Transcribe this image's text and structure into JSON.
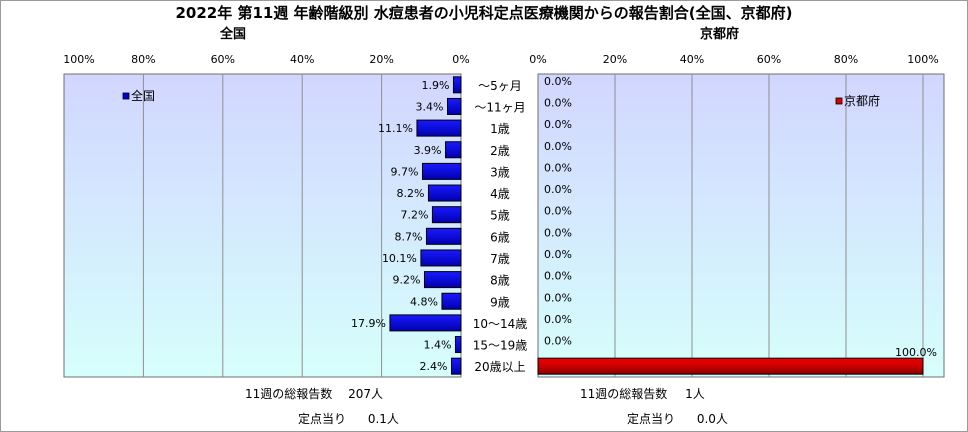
{
  "title": "2022年 第11週 年齢階級別 水痘患者の小児科定点医療機関からの報告割合(全国、京都府)",
  "colors": {
    "national_bar": "#0000dd",
    "kyoto_bar": "#dd0000",
    "bar_border": "#000000",
    "plot_bg_top": "#d2d6ff",
    "plot_bg_bottom": "#d6fffc",
    "grid": "#8f8f8f"
  },
  "chart_data": [
    {
      "type": "bar",
      "orientation": "horizontal",
      "direction": "right-to-left",
      "title": "全国",
      "series": [
        {
          "name": "全国",
          "values": [
            1.9,
            3.4,
            11.1,
            3.9,
            9.7,
            8.2,
            7.2,
            8.7,
            10.1,
            9.2,
            4.8,
            17.9,
            1.4,
            2.4
          ]
        }
      ],
      "value_labels": [
        "1.9%",
        "3.4%",
        "11.1%",
        "3.9%",
        "9.7%",
        "8.2%",
        "7.2%",
        "8.7%",
        "10.1%",
        "9.2%",
        "4.8%",
        "17.9%",
        "1.4%",
        "2.4%"
      ],
      "xlim": [
        0,
        100
      ],
      "ticks": [
        "100%",
        "80%",
        "60%",
        "40%",
        "20%",
        "0%"
      ],
      "legend": "top-left",
      "grid": true
    },
    {
      "type": "bar",
      "orientation": "horizontal",
      "direction": "left-to-right",
      "title": "京都府",
      "series": [
        {
          "name": "京都府",
          "values": [
            0.0,
            0.0,
            0.0,
            0.0,
            0.0,
            0.0,
            0.0,
            0.0,
            0.0,
            0.0,
            0.0,
            0.0,
            0.0,
            100.0
          ]
        }
      ],
      "value_labels": [
        "0.0%",
        "0.0%",
        "0.0%",
        "0.0%",
        "0.0%",
        "0.0%",
        "0.0%",
        "0.0%",
        "0.0%",
        "0.0%",
        "0.0%",
        "0.0%",
        "0.0%",
        "100.0%"
      ],
      "xlim": [
        0,
        100
      ],
      "ticks": [
        "0%",
        "20%",
        "40%",
        "60%",
        "80%",
        "100%"
      ],
      "legend": "top-right",
      "grid": true
    }
  ],
  "categories": [
    "～5ヶ月",
    "～11ヶ月",
    "1歳",
    "2歳",
    "3歳",
    "4歳",
    "5歳",
    "6歳",
    "7歳",
    "8歳",
    "9歳",
    "10～14歳",
    "15～19歳",
    "20歳以上"
  ],
  "footer": {
    "national": {
      "total_label": "11週の総報告数",
      "total_value": "207人",
      "per_label": "定点当り",
      "per_value": "0.1人"
    },
    "kyoto": {
      "total_label": "11週の総報告数",
      "total_value": "1人",
      "per_label": "定点当り",
      "per_value": "0.0人"
    }
  }
}
